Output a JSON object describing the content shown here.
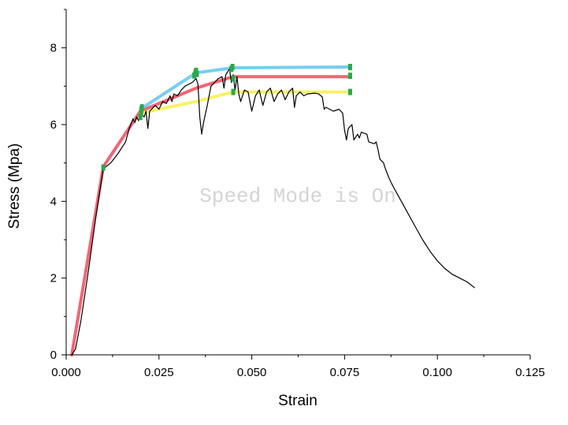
{
  "watermark": "Speed Mode is On",
  "chart_data": {
    "type": "line",
    "xlabel": "Strain",
    "ylabel": "Stress (Mpa)",
    "xlim": [
      0.0,
      0.125
    ],
    "ylim": [
      0,
      9
    ],
    "xticks": [
      0.0,
      0.025,
      0.05,
      0.075,
      0.1,
      0.125
    ],
    "xtick_labels": [
      "0.000",
      "0.025",
      "0.050",
      "0.075",
      "0.100",
      "0.125"
    ],
    "yticks": [
      0,
      2,
      4,
      6,
      8
    ],
    "ytick_labels": [
      "0",
      "2",
      "4",
      "6",
      "8"
    ],
    "grid": false,
    "legend": "none",
    "series": [
      {
        "color": "#000000",
        "style": "thin",
        "points": [
          [
            0.0015,
            0.0
          ],
          [
            0.0025,
            0.15
          ],
          [
            0.004,
            0.9
          ],
          [
            0.006,
            2.2
          ],
          [
            0.008,
            3.6
          ],
          [
            0.01,
            4.85
          ],
          [
            0.012,
            5.0
          ],
          [
            0.014,
            5.25
          ],
          [
            0.016,
            5.55
          ],
          [
            0.017,
            5.9
          ],
          [
            0.018,
            6.15
          ],
          [
            0.0185,
            6.05
          ],
          [
            0.019,
            6.2
          ],
          [
            0.0195,
            6.1
          ],
          [
            0.02,
            6.3
          ],
          [
            0.021,
            6.2
          ],
          [
            0.0215,
            6.35
          ],
          [
            0.022,
            5.9
          ],
          [
            0.0225,
            6.35
          ],
          [
            0.024,
            6.5
          ],
          [
            0.025,
            6.4
          ],
          [
            0.026,
            6.6
          ],
          [
            0.027,
            6.55
          ],
          [
            0.028,
            6.75
          ],
          [
            0.0285,
            6.6
          ],
          [
            0.029,
            6.8
          ],
          [
            0.03,
            6.75
          ],
          [
            0.031,
            6.9
          ],
          [
            0.032,
            7.0
          ],
          [
            0.033,
            7.05
          ],
          [
            0.034,
            7.1
          ],
          [
            0.035,
            7.2
          ],
          [
            0.0355,
            7.05
          ],
          [
            0.036,
            6.2
          ],
          [
            0.0365,
            5.75
          ],
          [
            0.037,
            6.05
          ],
          [
            0.038,
            6.5
          ],
          [
            0.039,
            7.0
          ],
          [
            0.04,
            7.1
          ],
          [
            0.041,
            7.2
          ],
          [
            0.042,
            7.25
          ],
          [
            0.0425,
            6.95
          ],
          [
            0.043,
            7.3
          ],
          [
            0.044,
            7.45
          ],
          [
            0.0445,
            7.1
          ],
          [
            0.045,
            7.3
          ],
          [
            0.0455,
            6.9
          ],
          [
            0.046,
            7.25
          ],
          [
            0.0465,
            6.8
          ],
          [
            0.047,
            6.6
          ],
          [
            0.048,
            6.9
          ],
          [
            0.049,
            6.85
          ],
          [
            0.05,
            6.35
          ],
          [
            0.051,
            6.75
          ],
          [
            0.052,
            6.9
          ],
          [
            0.053,
            6.5
          ],
          [
            0.054,
            6.85
          ],
          [
            0.055,
            6.95
          ],
          [
            0.056,
            6.6
          ],
          [
            0.057,
            6.8
          ],
          [
            0.058,
            6.9
          ],
          [
            0.059,
            6.65
          ],
          [
            0.06,
            6.85
          ],
          [
            0.061,
            6.95
          ],
          [
            0.0615,
            6.45
          ],
          [
            0.062,
            6.75
          ],
          [
            0.063,
            6.85
          ],
          [
            0.064,
            6.75
          ],
          [
            0.065,
            6.8
          ],
          [
            0.067,
            6.82
          ],
          [
            0.068,
            6.8
          ],
          [
            0.069,
            6.72
          ],
          [
            0.0695,
            6.4
          ],
          [
            0.07,
            6.45
          ],
          [
            0.072,
            6.35
          ],
          [
            0.0735,
            6.4
          ],
          [
            0.0745,
            6.3
          ],
          [
            0.075,
            5.85
          ],
          [
            0.0755,
            5.6
          ],
          [
            0.076,
            5.9
          ],
          [
            0.077,
            6.0
          ],
          [
            0.0775,
            5.6
          ],
          [
            0.0785,
            5.75
          ],
          [
            0.079,
            5.65
          ],
          [
            0.0795,
            5.8
          ],
          [
            0.081,
            5.75
          ],
          [
            0.0815,
            5.55
          ],
          [
            0.083,
            5.5
          ],
          [
            0.0835,
            5.55
          ],
          [
            0.084,
            5.35
          ],
          [
            0.0845,
            5.1
          ],
          [
            0.0855,
            5.0
          ],
          [
            0.086,
            4.85
          ],
          [
            0.087,
            4.6
          ],
          [
            0.088,
            4.4
          ],
          [
            0.09,
            4.05
          ],
          [
            0.092,
            3.7
          ],
          [
            0.094,
            3.35
          ],
          [
            0.096,
            3.0
          ],
          [
            0.098,
            2.7
          ],
          [
            0.1,
            2.45
          ],
          [
            0.102,
            2.25
          ],
          [
            0.104,
            2.1
          ],
          [
            0.106,
            2.0
          ],
          [
            0.108,
            1.9
          ],
          [
            0.11,
            1.75
          ]
        ]
      },
      {
        "color": "#f04a5c",
        "style": "thick",
        "points": [
          [
            0.0015,
            0.0
          ],
          [
            0.01,
            4.9
          ],
          [
            0.02,
            6.35
          ],
          [
            0.035,
            6.95
          ],
          [
            0.045,
            7.25
          ],
          [
            0.076,
            7.25
          ]
        ]
      },
      {
        "color": "#5cc6f0",
        "style": "thick",
        "points": [
          [
            0.02,
            6.4
          ],
          [
            0.035,
            7.35
          ],
          [
            0.045,
            7.48
          ],
          [
            0.076,
            7.5
          ]
        ]
      },
      {
        "color": "#f4f04a",
        "style": "thick",
        "points": [
          [
            0.02,
            6.3
          ],
          [
            0.035,
            6.6
          ],
          [
            0.045,
            6.85
          ],
          [
            0.076,
            6.85
          ]
        ]
      },
      {
        "color": "#2ca84c",
        "style": "markers",
        "points": [
          [
            0.01,
            4.88
          ],
          [
            0.02,
            6.2
          ],
          [
            0.0202,
            6.3
          ],
          [
            0.0203,
            6.4
          ],
          [
            0.0204,
            6.45
          ],
          [
            0.0345,
            7.28
          ],
          [
            0.0348,
            7.35
          ],
          [
            0.035,
            7.4
          ],
          [
            0.0352,
            7.32
          ],
          [
            0.0445,
            7.45
          ],
          [
            0.045,
            7.2
          ],
          [
            0.045,
            6.85
          ],
          [
            0.0448,
            7.5
          ],
          [
            0.0765,
            7.5
          ],
          [
            0.0765,
            7.27
          ],
          [
            0.0765,
            6.85
          ]
        ]
      }
    ]
  }
}
